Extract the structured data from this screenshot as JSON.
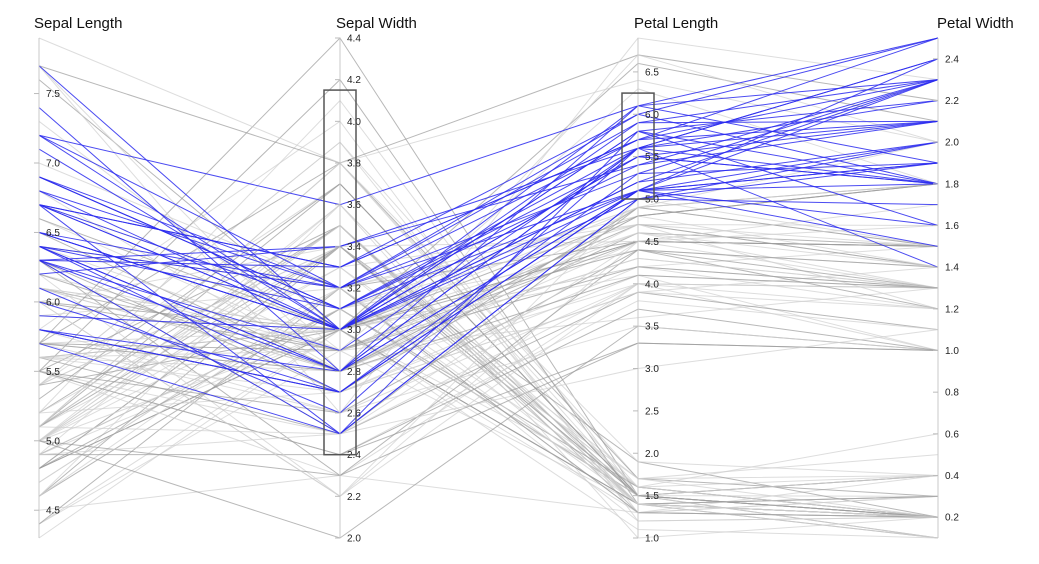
{
  "chart_data": {
    "type": "parallel-coordinates",
    "dimensions": [
      {
        "key": "sepal_length",
        "label": "Sepal Length",
        "domain": [
          4.3,
          7.9
        ],
        "ticks": [
          4.5,
          5.0,
          5.5,
          6.0,
          6.5,
          7.0,
          7.5
        ]
      },
      {
        "key": "sepal_width",
        "label": "Sepal Width",
        "domain": [
          2.0,
          4.4
        ],
        "ticks": [
          2.0,
          2.2,
          2.4,
          2.6,
          2.8,
          3.0,
          3.2,
          3.4,
          3.6,
          3.8,
          4.0,
          4.2,
          4.4
        ]
      },
      {
        "key": "petal_length",
        "label": "Petal Length",
        "domain": [
          1.0,
          6.9
        ],
        "ticks": [
          1.0,
          1.5,
          2.0,
          2.5,
          3.0,
          3.5,
          4.0,
          4.5,
          5.0,
          5.5,
          6.0,
          6.5
        ]
      },
      {
        "key": "petal_width",
        "label": "Petal Width",
        "domain": [
          0.1,
          2.5
        ],
        "ticks": [
          0.2,
          0.4,
          0.6,
          0.8,
          1.0,
          1.2,
          1.4,
          1.6,
          1.8,
          2.0,
          2.2,
          2.4
        ]
      }
    ],
    "brushes": [
      {
        "dimension": "sepal_width",
        "range": [
          2.4,
          4.15
        ]
      },
      {
        "dimension": "petal_length",
        "range": [
          5.0,
          6.25
        ]
      }
    ],
    "colors": {
      "selected": "#2b2bee",
      "background": "#cfcfcf",
      "background_dark": "#9a9a9a"
    },
    "records": [
      [
        5.1,
        3.5,
        1.4,
        0.2
      ],
      [
        4.9,
        3.0,
        1.4,
        0.2
      ],
      [
        4.7,
        3.2,
        1.3,
        0.2
      ],
      [
        4.6,
        3.1,
        1.5,
        0.2
      ],
      [
        5.0,
        3.6,
        1.4,
        0.2
      ],
      [
        5.4,
        3.9,
        1.7,
        0.4
      ],
      [
        4.6,
        3.4,
        1.4,
        0.3
      ],
      [
        5.0,
        3.4,
        1.5,
        0.2
      ],
      [
        4.4,
        2.9,
        1.4,
        0.2
      ],
      [
        4.9,
        3.1,
        1.5,
        0.1
      ],
      [
        5.4,
        3.7,
        1.5,
        0.2
      ],
      [
        4.8,
        3.4,
        1.6,
        0.2
      ],
      [
        4.8,
        3.0,
        1.4,
        0.1
      ],
      [
        4.3,
        3.0,
        1.1,
        0.1
      ],
      [
        5.8,
        4.0,
        1.2,
        0.2
      ],
      [
        5.7,
        4.4,
        1.5,
        0.4
      ],
      [
        5.4,
        3.9,
        1.3,
        0.4
      ],
      [
        5.1,
        3.5,
        1.4,
        0.3
      ],
      [
        5.7,
        3.8,
        1.7,
        0.3
      ],
      [
        5.1,
        3.8,
        1.5,
        0.3
      ],
      [
        5.4,
        3.4,
        1.7,
        0.2
      ],
      [
        5.1,
        3.7,
        1.5,
        0.4
      ],
      [
        4.6,
        3.6,
        1.0,
        0.2
      ],
      [
        5.1,
        3.3,
        1.7,
        0.5
      ],
      [
        4.8,
        3.4,
        1.9,
        0.2
      ],
      [
        5.0,
        3.0,
        1.6,
        0.2
      ],
      [
        5.0,
        3.4,
        1.6,
        0.4
      ],
      [
        5.2,
        3.5,
        1.5,
        0.2
      ],
      [
        5.2,
        3.4,
        1.4,
        0.2
      ],
      [
        4.7,
        3.2,
        1.6,
        0.2
      ],
      [
        4.8,
        3.1,
        1.6,
        0.2
      ],
      [
        5.4,
        3.4,
        1.5,
        0.4
      ],
      [
        5.2,
        4.1,
        1.5,
        0.1
      ],
      [
        5.5,
        4.2,
        1.4,
        0.2
      ],
      [
        4.9,
        3.1,
        1.5,
        0.2
      ],
      [
        5.0,
        3.2,
        1.2,
        0.2
      ],
      [
        5.5,
        3.5,
        1.3,
        0.2
      ],
      [
        4.9,
        3.6,
        1.4,
        0.1
      ],
      [
        4.4,
        3.0,
        1.3,
        0.2
      ],
      [
        5.1,
        3.4,
        1.5,
        0.2
      ],
      [
        5.0,
        3.5,
        1.3,
        0.3
      ],
      [
        4.5,
        2.3,
        1.3,
        0.3
      ],
      [
        4.4,
        3.2,
        1.3,
        0.2
      ],
      [
        5.0,
        3.5,
        1.6,
        0.6
      ],
      [
        5.1,
        3.8,
        1.9,
        0.4
      ],
      [
        4.8,
        3.0,
        1.4,
        0.3
      ],
      [
        5.1,
        3.8,
        1.6,
        0.2
      ],
      [
        4.6,
        3.2,
        1.4,
        0.2
      ],
      [
        5.3,
        3.7,
        1.5,
        0.2
      ],
      [
        5.0,
        3.3,
        1.4,
        0.2
      ],
      [
        7.0,
        3.2,
        4.7,
        1.4
      ],
      [
        6.4,
        3.2,
        4.5,
        1.5
      ],
      [
        6.9,
        3.1,
        4.9,
        1.5
      ],
      [
        5.5,
        2.3,
        4.0,
        1.3
      ],
      [
        6.5,
        2.8,
        4.6,
        1.5
      ],
      [
        5.7,
        2.8,
        4.5,
        1.3
      ],
      [
        6.3,
        3.3,
        4.7,
        1.6
      ],
      [
        4.9,
        2.4,
        3.3,
        1.0
      ],
      [
        6.6,
        2.9,
        4.6,
        1.3
      ],
      [
        5.2,
        2.7,
        3.9,
        1.4
      ],
      [
        5.0,
        2.0,
        3.5,
        1.0
      ],
      [
        5.9,
        3.0,
        4.2,
        1.5
      ],
      [
        6.0,
        2.2,
        4.0,
        1.0
      ],
      [
        6.1,
        2.9,
        4.7,
        1.4
      ],
      [
        5.6,
        2.9,
        3.6,
        1.3
      ],
      [
        6.7,
        3.1,
        4.4,
        1.4
      ],
      [
        5.6,
        3.0,
        4.5,
        1.5
      ],
      [
        5.8,
        2.7,
        4.1,
        1.0
      ],
      [
        6.2,
        2.2,
        4.5,
        1.5
      ],
      [
        5.6,
        2.5,
        3.9,
        1.1
      ],
      [
        5.9,
        3.2,
        4.8,
        1.8
      ],
      [
        6.1,
        2.8,
        4.0,
        1.3
      ],
      [
        6.3,
        2.5,
        4.9,
        1.5
      ],
      [
        6.1,
        2.8,
        4.7,
        1.2
      ],
      [
        6.4,
        2.9,
        4.3,
        1.3
      ],
      [
        6.6,
        3.0,
        4.4,
        1.4
      ],
      [
        6.8,
        2.8,
        4.8,
        1.4
      ],
      [
        6.7,
        3.0,
        5.0,
        1.7
      ],
      [
        6.0,
        2.9,
        4.5,
        1.5
      ],
      [
        5.7,
        2.6,
        3.5,
        1.0
      ],
      [
        5.5,
        2.4,
        3.8,
        1.1
      ],
      [
        5.5,
        2.4,
        3.7,
        1.0
      ],
      [
        5.8,
        2.7,
        3.9,
        1.2
      ],
      [
        6.0,
        2.7,
        5.1,
        1.6
      ],
      [
        5.4,
        3.0,
        4.5,
        1.5
      ],
      [
        6.0,
        3.4,
        4.5,
        1.6
      ],
      [
        6.7,
        3.1,
        4.7,
        1.5
      ],
      [
        6.3,
        2.3,
        4.4,
        1.3
      ],
      [
        5.6,
        3.0,
        4.1,
        1.3
      ],
      [
        5.5,
        2.5,
        4.0,
        1.3
      ],
      [
        5.5,
        2.6,
        4.4,
        1.2
      ],
      [
        6.1,
        3.0,
        4.6,
        1.4
      ],
      [
        5.8,
        2.6,
        4.0,
        1.2
      ],
      [
        5.0,
        2.3,
        3.3,
        1.0
      ],
      [
        5.6,
        2.7,
        4.2,
        1.3
      ],
      [
        5.7,
        3.0,
        4.2,
        1.2
      ],
      [
        5.7,
        2.9,
        4.2,
        1.3
      ],
      [
        6.2,
        2.9,
        4.3,
        1.3
      ],
      [
        5.1,
        2.5,
        3.0,
        1.1
      ],
      [
        5.7,
        2.8,
        4.1,
        1.3
      ],
      [
        6.3,
        3.3,
        6.0,
        2.5
      ],
      [
        5.8,
        2.7,
        5.1,
        1.9
      ],
      [
        7.1,
        3.0,
        5.9,
        2.1
      ],
      [
        6.3,
        2.9,
        5.6,
        1.8
      ],
      [
        6.5,
        3.0,
        5.8,
        2.2
      ],
      [
        7.6,
        3.0,
        6.6,
        2.1
      ],
      [
        4.9,
        2.5,
        4.5,
        1.7
      ],
      [
        7.3,
        2.9,
        6.3,
        1.8
      ],
      [
        6.7,
        2.5,
        5.8,
        1.8
      ],
      [
        7.2,
        3.6,
        6.1,
        2.5
      ],
      [
        6.5,
        3.2,
        5.1,
        2.0
      ],
      [
        6.4,
        2.7,
        5.3,
        1.9
      ],
      [
        6.8,
        3.0,
        5.5,
        2.1
      ],
      [
        5.7,
        2.5,
        5.0,
        2.0
      ],
      [
        5.8,
        2.8,
        5.1,
        2.4
      ],
      [
        6.4,
        3.2,
        5.3,
        2.3
      ],
      [
        6.5,
        3.0,
        5.5,
        1.8
      ],
      [
        7.7,
        3.8,
        6.7,
        2.2
      ],
      [
        7.7,
        2.6,
        6.9,
        2.3
      ],
      [
        6.0,
        2.2,
        5.0,
        1.5
      ],
      [
        6.9,
        3.2,
        5.7,
        2.3
      ],
      [
        5.6,
        2.8,
        4.9,
        2.0
      ],
      [
        7.7,
        2.8,
        6.7,
        2.0
      ],
      [
        6.3,
        2.7,
        4.9,
        1.8
      ],
      [
        6.7,
        3.3,
        5.7,
        2.1
      ],
      [
        7.2,
        3.2,
        6.0,
        1.8
      ],
      [
        6.2,
        2.8,
        4.8,
        1.8
      ],
      [
        6.1,
        3.0,
        4.9,
        1.8
      ],
      [
        6.4,
        2.8,
        5.6,
        2.1
      ],
      [
        7.2,
        3.0,
        5.8,
        1.6
      ],
      [
        7.4,
        2.8,
        6.1,
        1.9
      ],
      [
        7.9,
        3.8,
        6.4,
        2.0
      ],
      [
        6.4,
        2.8,
        5.6,
        2.2
      ],
      [
        6.3,
        2.8,
        5.1,
        1.5
      ],
      [
        6.1,
        2.6,
        5.6,
        1.4
      ],
      [
        7.7,
        3.0,
        6.1,
        2.3
      ],
      [
        6.3,
        3.4,
        5.6,
        2.4
      ],
      [
        6.4,
        3.1,
        5.5,
        1.8
      ],
      [
        6.0,
        3.0,
        4.8,
        1.8
      ],
      [
        6.9,
        3.1,
        5.4,
        2.1
      ],
      [
        6.7,
        3.1,
        5.6,
        2.4
      ],
      [
        6.9,
        3.1,
        5.1,
        2.3
      ],
      [
        5.8,
        2.7,
        5.1,
        1.9
      ],
      [
        6.8,
        3.2,
        5.9,
        2.3
      ],
      [
        6.7,
        3.3,
        5.7,
        2.5
      ],
      [
        6.7,
        3.0,
        5.2,
        2.3
      ],
      [
        6.3,
        2.5,
        5.0,
        1.9
      ],
      [
        6.5,
        3.0,
        5.2,
        2.0
      ],
      [
        6.2,
        3.4,
        5.4,
        2.3
      ],
      [
        5.9,
        3.0,
        5.1,
        1.8
      ]
    ]
  }
}
